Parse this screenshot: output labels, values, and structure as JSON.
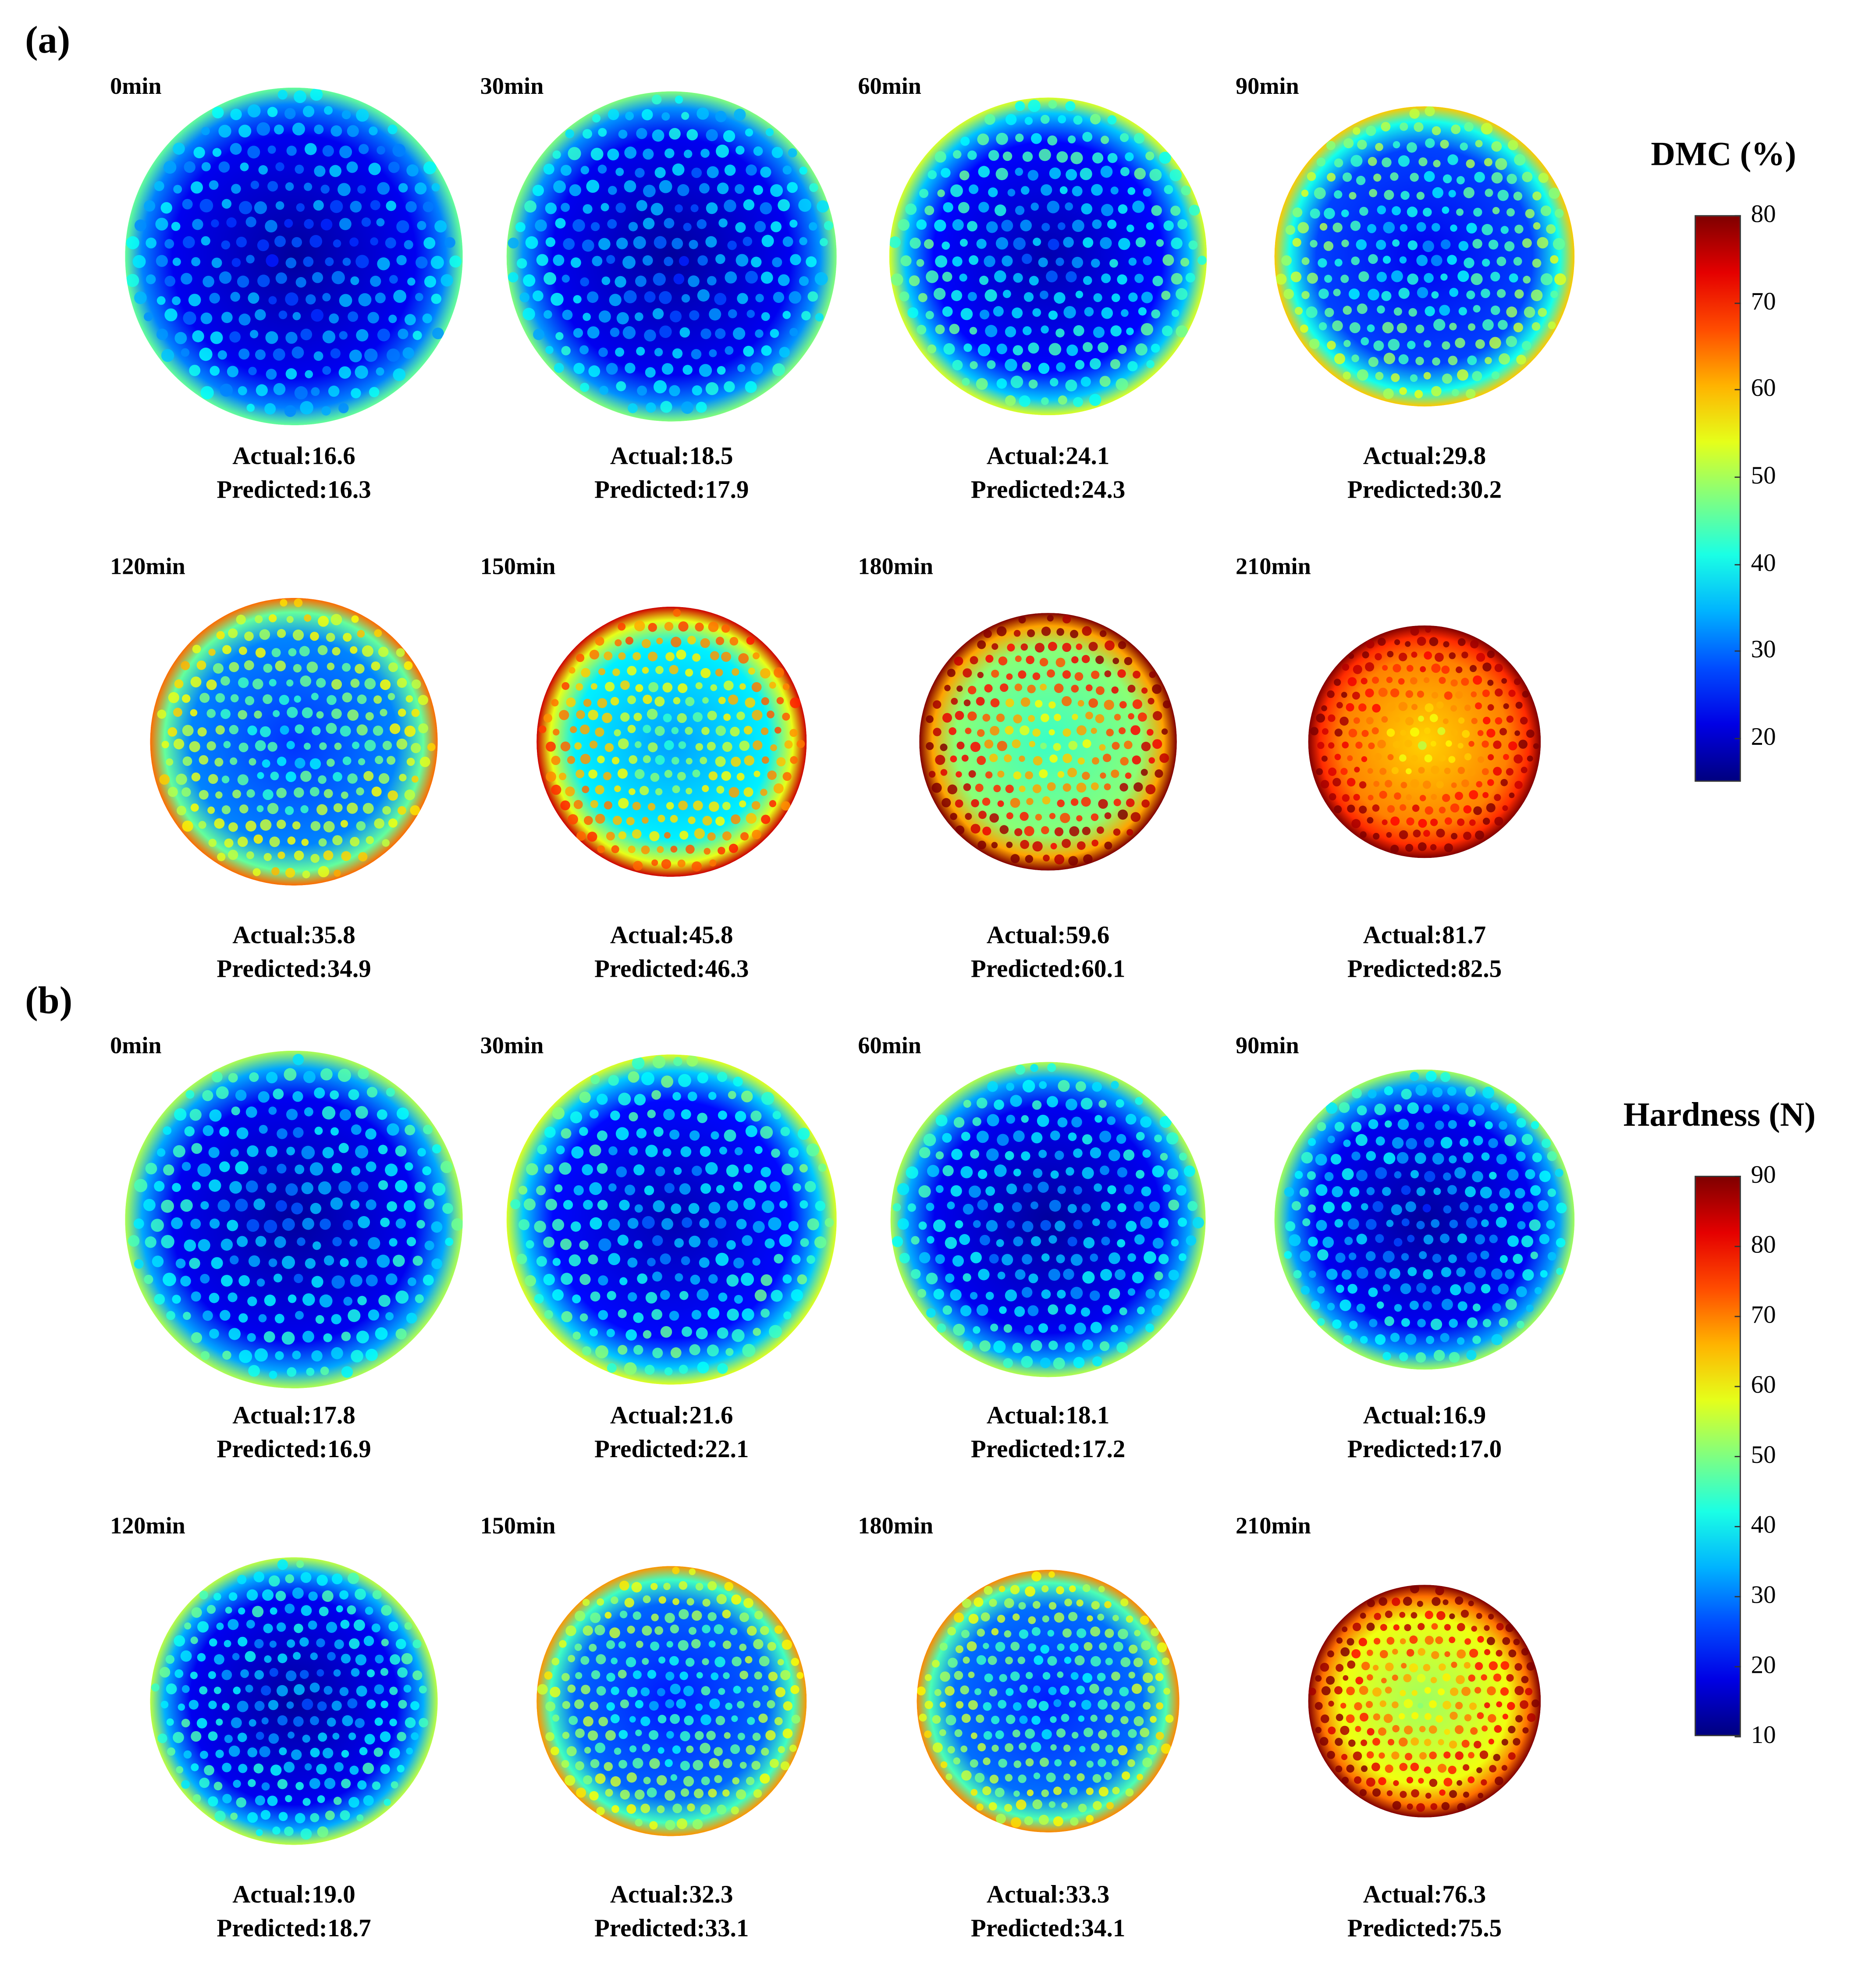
{
  "panels": [
    {
      "label": "(a)",
      "colorbar": {
        "title": "DMC (%)",
        "min": 15,
        "max": 80,
        "ticks": [
          "20",
          "30",
          "40",
          "50",
          "60",
          "70",
          "80"
        ]
      },
      "actual_prefix": "Actual:",
      "predicted_prefix": "Predicted:",
      "items": [
        {
          "time": "0min",
          "actual": "16.6",
          "predicted": "16.3"
        },
        {
          "time": "30min",
          "actual": "18.5",
          "predicted": "17.9"
        },
        {
          "time": "60min",
          "actual": "24.1",
          "predicted": "24.3"
        },
        {
          "time": "90min",
          "actual": "29.8",
          "predicted": "30.2"
        },
        {
          "time": "120min",
          "actual": "35.8",
          "predicted": "34.9"
        },
        {
          "time": "150min",
          "actual": "45.8",
          "predicted": "46.3"
        },
        {
          "time": "180min",
          "actual": "59.6",
          "predicted": "60.1"
        },
        {
          "time": "210min",
          "actual": "81.7",
          "predicted": "82.5"
        }
      ]
    },
    {
      "label": "(b)",
      "colorbar": {
        "title": "Hardness (N)",
        "min": 10,
        "max": 90,
        "ticks": [
          "10",
          "20",
          "30",
          "40",
          "50",
          "60",
          "70",
          "80",
          "90"
        ]
      },
      "actual_prefix": "Actual:",
      "predicted_prefix": "Predicted:",
      "items": [
        {
          "time": "0min",
          "actual": "17.8",
          "predicted": "16.9"
        },
        {
          "time": "30min",
          "actual": "21.6",
          "predicted": "22.1"
        },
        {
          "time": "60min",
          "actual": "18.1",
          "predicted": "17.2"
        },
        {
          "time": "90min",
          "actual": "16.9",
          "predicted": "17.0"
        },
        {
          "time": "120min",
          "actual": "19.0",
          "predicted": "18.7"
        },
        {
          "time": "150min",
          "actual": "32.3",
          "predicted": "33.1"
        },
        {
          "time": "180min",
          "actual": "33.3",
          "predicted": "34.1"
        },
        {
          "time": "210min",
          "actual": "76.3",
          "predicted": "75.5"
        }
      ]
    }
  ]
}
